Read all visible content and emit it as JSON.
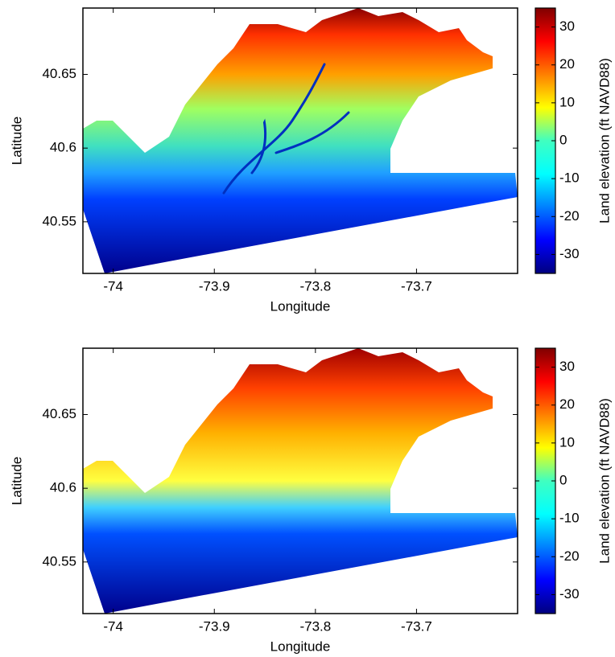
{
  "panels": [
    {
      "x_label": "Longitude",
      "y_label": "Latitude",
      "xlim": [
        -74.03,
        -73.6
      ],
      "ylim": [
        40.515,
        40.695
      ],
      "xticks": [
        -74,
        -73.9,
        -73.8,
        -73.7
      ],
      "yticks": [
        40.55,
        40.6,
        40.65
      ],
      "colorbar": {
        "label": "Land elevation (ft NAVD88)",
        "lim": [
          -35,
          35
        ],
        "ticks": [
          -30,
          -20,
          -10,
          0,
          10,
          20,
          30
        ]
      }
    },
    {
      "x_label": "Longitude",
      "y_label": "Latitude",
      "xlim": [
        -74.03,
        -73.6
      ],
      "ylim": [
        40.515,
        40.695
      ],
      "xticks": [
        -74,
        -73.9,
        -73.8,
        -73.7
      ],
      "yticks": [
        40.55,
        40.6,
        40.65
      ],
      "colorbar": {
        "label": "Land elevation (ft NAVD88)",
        "lim": [
          -35,
          35
        ],
        "ticks": [
          -30,
          -20,
          -10,
          0,
          10,
          20,
          30
        ]
      }
    }
  ]
}
